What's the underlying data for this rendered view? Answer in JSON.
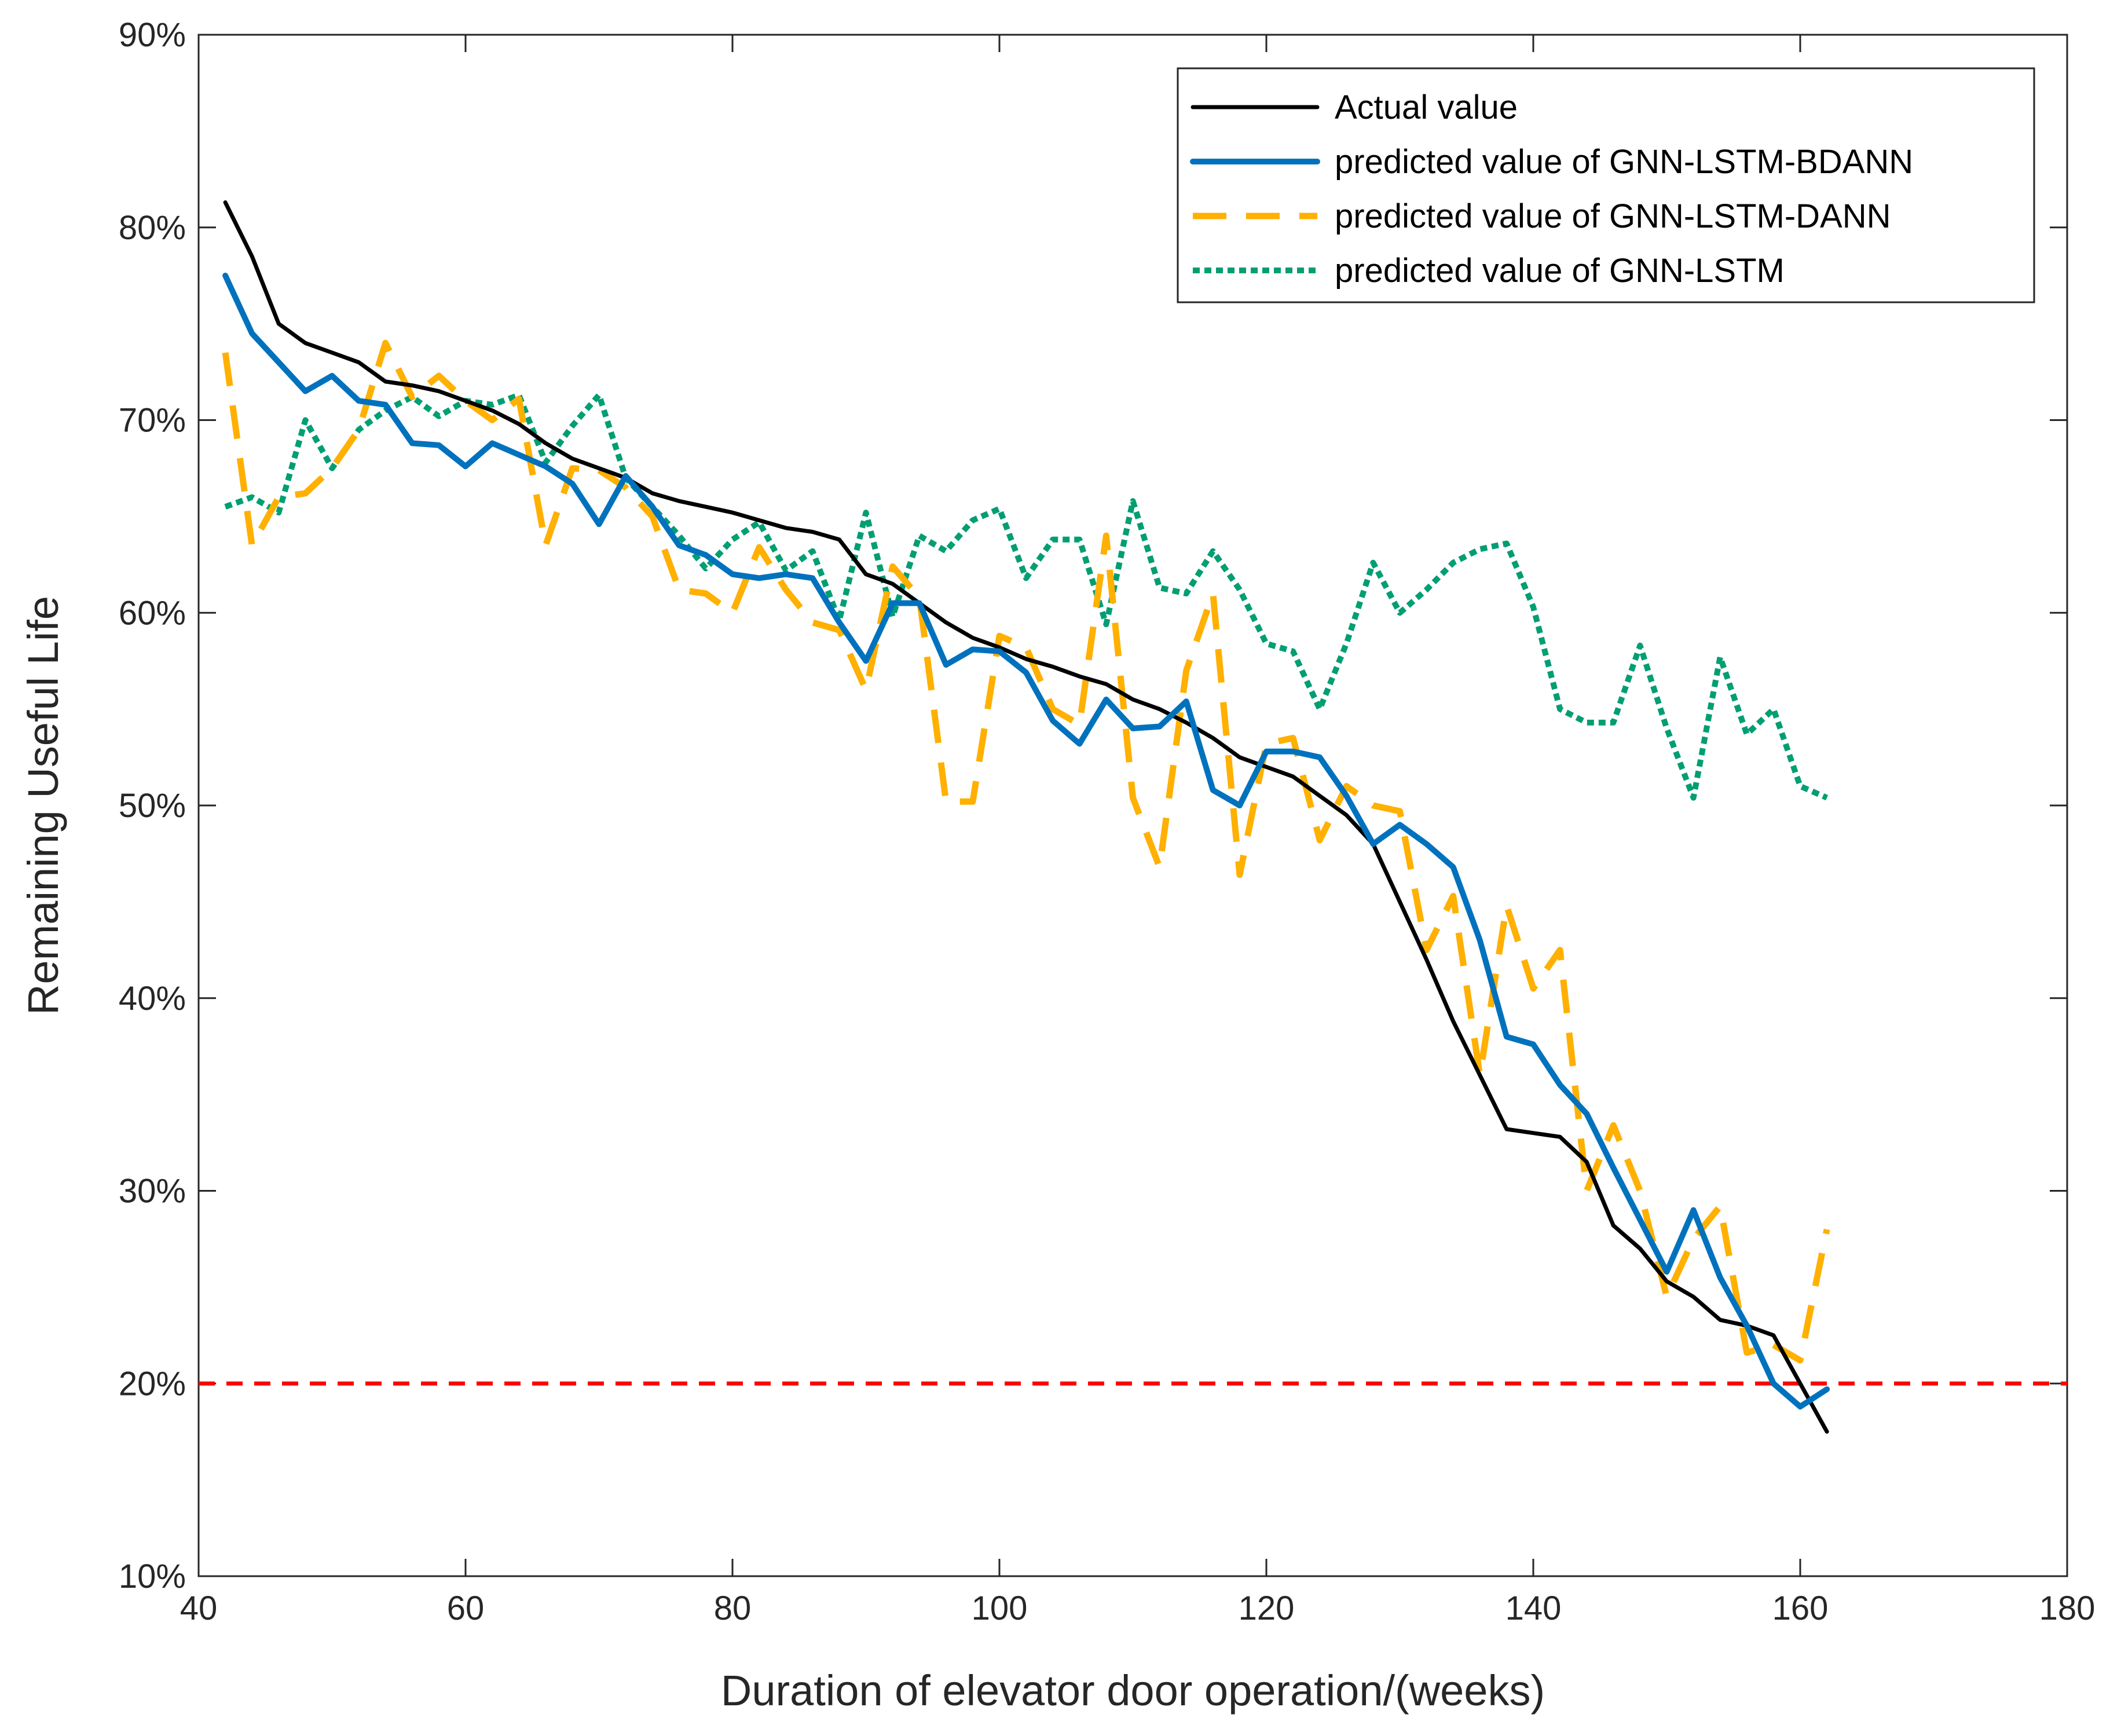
{
  "chart_data": {
    "type": "line",
    "title": "",
    "xlabel": "Duration of elevator door operation/(weeks)",
    "ylabel": "Remaining Useful Life",
    "xlim": [
      40,
      180
    ],
    "ylim": [
      10,
      90
    ],
    "xticks": [
      40,
      60,
      80,
      100,
      120,
      140,
      160,
      180
    ],
    "xtick_labels": [
      "40",
      "60",
      "80",
      "100",
      "120",
      "140",
      "160",
      "180"
    ],
    "yticks": [
      10,
      20,
      30,
      40,
      50,
      60,
      70,
      80,
      90
    ],
    "ytick_labels": [
      "10%",
      "20%",
      "30%",
      "40%",
      "50%",
      "60%",
      "70%",
      "80%",
      "90%"
    ],
    "grid": false,
    "legend_position": "top-right",
    "threshold": {
      "y": 20,
      "color": "#ff0000",
      "style": "dashed"
    },
    "series": [
      {
        "name": "Actual value",
        "color": "#000000",
        "style": "solid",
        "x": [
          42,
          44,
          46,
          48,
          50,
          52,
          54,
          56,
          58,
          60,
          62,
          64,
          66,
          68,
          70,
          72,
          74,
          76,
          78,
          80,
          82,
          84,
          86,
          88,
          90,
          92,
          94,
          96,
          98,
          100,
          102,
          104,
          106,
          108,
          110,
          112,
          114,
          116,
          118,
          120,
          122,
          124,
          126,
          128,
          130,
          132,
          134,
          136,
          138,
          140,
          142,
          144,
          146,
          148,
          150,
          152,
          154,
          156,
          158,
          160,
          162
        ],
        "values": [
          81.3,
          78.5,
          75,
          74,
          73.5,
          73,
          72,
          71.8,
          71.5,
          71,
          70.5,
          69.8,
          68.8,
          68,
          67.5,
          67,
          66.2,
          65.8,
          65.5,
          65.2,
          64.8,
          64.4,
          64.2,
          63.8,
          62,
          61.5,
          60.5,
          59.5,
          58.7,
          58.2,
          57.6,
          57.2,
          56.7,
          56.3,
          55.5,
          55,
          54.3,
          53.5,
          52.5,
          52,
          51.5,
          50.5,
          49.5,
          48,
          45,
          42,
          38.8,
          36,
          33.2,
          33,
          32.8,
          31.5,
          28.2,
          27,
          25.3,
          24.5,
          23.3,
          23,
          22.5,
          20,
          17.5
        ]
      },
      {
        "name": "predicted value of GNN-LSTM-BDANN",
        "color": "#0072bd",
        "style": "solid",
        "x": [
          42,
          44,
          46,
          48,
          50,
          52,
          54,
          56,
          58,
          60,
          62,
          64,
          66,
          68,
          70,
          72,
          74,
          76,
          78,
          80,
          82,
          84,
          86,
          88,
          90,
          92,
          94,
          96,
          98,
          100,
          102,
          104,
          106,
          108,
          110,
          112,
          114,
          116,
          118,
          120,
          122,
          124,
          126,
          128,
          130,
          132,
          134,
          136,
          138,
          140,
          142,
          144,
          146,
          148,
          150,
          152,
          154,
          156,
          158,
          160,
          162
        ],
        "values": [
          77.5,
          74.5,
          73,
          71.5,
          72.3,
          71,
          70.8,
          68.8,
          68.7,
          67.6,
          68.8,
          68.2,
          67.6,
          66.7,
          64.6,
          67.1,
          65.5,
          63.5,
          63,
          62,
          61.8,
          62,
          61.8,
          59.5,
          57.5,
          60.5,
          60.5,
          57.3,
          58.1,
          58,
          56.9,
          54.4,
          53.2,
          55.5,
          54,
          54.1,
          55.4,
          50.8,
          50,
          52.8,
          52.8,
          52.5,
          50.5,
          48,
          49,
          48,
          46.8,
          43,
          38,
          37.6,
          35.5,
          34,
          31.2,
          28.5,
          25.8,
          29,
          25.5,
          23,
          20,
          18.8,
          19.7
        ]
      },
      {
        "name": "predicted value of GNN-LSTM-DANN",
        "color": "#ffb000",
        "style": "dashed",
        "x": [
          42,
          44,
          46,
          48,
          50,
          52,
          54,
          56,
          58,
          60,
          62,
          64,
          66,
          68,
          70,
          72,
          74,
          76,
          78,
          80,
          82,
          84,
          86,
          88,
          90,
          92,
          94,
          96,
          98,
          100,
          102,
          104,
          106,
          108,
          110,
          112,
          114,
          116,
          118,
          120,
          122,
          124,
          126,
          128,
          130,
          132,
          134,
          136,
          138,
          140,
          142,
          144,
          146,
          148,
          150,
          152,
          154,
          156,
          158,
          160,
          162
        ],
        "values": [
          73.5,
          63.5,
          66,
          66.2,
          67.5,
          69.5,
          74,
          71.2,
          72.3,
          71,
          70,
          71.1,
          63.5,
          67.5,
          67.4,
          66.5,
          65,
          61.2,
          61,
          60,
          63.4,
          61.2,
          59.5,
          59.1,
          56,
          62.4,
          60.8,
          50.2,
          50.2,
          58.8,
          58.2,
          55,
          54.2,
          64,
          50.4,
          46.8,
          57,
          61,
          46.4,
          53.2,
          53.5,
          48.2,
          51,
          50,
          49.7,
          42.5,
          45.3,
          36,
          44.8,
          40.5,
          42.5,
          30,
          33.4,
          30,
          24.5,
          27.5,
          29.2,
          21.6,
          22,
          21.2,
          28
        ]
      },
      {
        "name": "predicted value of GNN-LSTM",
        "color": "#009e73",
        "style": "dotted",
        "x": [
          42,
          44,
          46,
          48,
          50,
          52,
          54,
          56,
          58,
          60,
          62,
          64,
          66,
          68,
          70,
          72,
          74,
          76,
          78,
          80,
          82,
          84,
          86,
          88,
          90,
          92,
          94,
          96,
          98,
          100,
          102,
          104,
          106,
          108,
          110,
          112,
          114,
          116,
          118,
          120,
          122,
          124,
          126,
          128,
          130,
          132,
          134,
          136,
          138,
          140,
          142,
          144,
          146,
          148,
          150,
          152,
          154,
          156,
          158,
          160,
          162
        ],
        "values": [
          65.5,
          66,
          65.2,
          70,
          67.5,
          69.5,
          70.5,
          71.2,
          70.2,
          71,
          70.8,
          71.3,
          67.8,
          69.7,
          71.3,
          67,
          65.5,
          64,
          62.3,
          63.8,
          64.7,
          62.2,
          63.2,
          59.6,
          65.2,
          59.8,
          64,
          63.2,
          64.8,
          65.4,
          61.8,
          63.8,
          63.8,
          59.4,
          65.8,
          61.3,
          61,
          63.2,
          61.2,
          58.4,
          58,
          55,
          58.4,
          62.6,
          60,
          61.2,
          62.6,
          63.3,
          63.6,
          60.3,
          55,
          54.3,
          54.3,
          58.3,
          54,
          50.4,
          57.7,
          53.7,
          55,
          51,
          50.4
        ]
      }
    ]
  }
}
